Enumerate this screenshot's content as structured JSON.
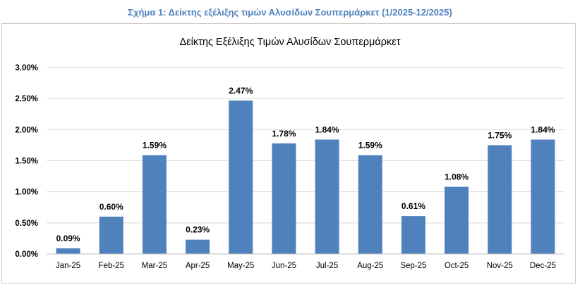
{
  "caption": "Σχήμα 1: Δείκτης εξέλιξης τιμών Αλυσίδων Σουπερμάρκετ (1/2025-12/2025)",
  "colors": {
    "bar": "#4f81bd",
    "grid": "#d9d9d9",
    "axis": "#bfbfbf",
    "caption": "#4f81bd"
  },
  "chart_data": {
    "type": "bar",
    "title": "Δείκτης Εξέλιξης Τιμών Αλυσίδων Σουπερμάρκετ",
    "xlabel": "",
    "ylabel": "",
    "categories": [
      "Jan-25",
      "Feb-25",
      "Mar-25",
      "Apr-25",
      "May-25",
      "Jun-25",
      "Jul-25",
      "Aug-25",
      "Sep-25",
      "Oct-25",
      "Nov-25",
      "Dec-25"
    ],
    "values": [
      0.09,
      0.6,
      1.59,
      0.23,
      2.47,
      1.78,
      1.84,
      1.59,
      0.61,
      1.08,
      1.75,
      1.84
    ],
    "data_labels": [
      "0.09%",
      "0.60%",
      "1.59%",
      "0.23%",
      "2.47%",
      "1.78%",
      "1.84%",
      "1.59%",
      "0.61%",
      "1.08%",
      "1.75%",
      "1.84%"
    ],
    "ylim": [
      0,
      3.0
    ],
    "yticks": [
      0,
      0.5,
      1.0,
      1.5,
      2.0,
      2.5,
      3.0
    ],
    "ytick_labels": [
      "0.00%",
      "0.50%",
      "1.00%",
      "1.50%",
      "2.00%",
      "2.50%",
      "3.00%"
    ],
    "grid": true,
    "legend": false
  }
}
